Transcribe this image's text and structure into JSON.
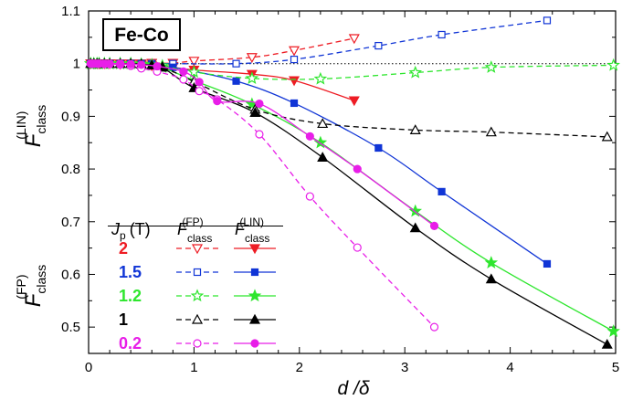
{
  "chart_data": {
    "type": "line",
    "title": "Fe-Co",
    "xlabel": "d /δ",
    "ylabel_top": {
      "main": "F",
      "sub": "class",
      "sup": "(LIN)"
    },
    "ylabel_bottom": {
      "main": "F",
      "sub": "class",
      "sup": "(FP)"
    },
    "xlim": [
      0,
      5
    ],
    "ylim": [
      0.45,
      1.1
    ],
    "xticks": [
      "0",
      "1",
      "2",
      "3",
      "4",
      "5"
    ],
    "yticks": [
      "0.5",
      "0.6",
      "0.7",
      "0.8",
      "0.9",
      "1",
      "1.1"
    ],
    "grid": false,
    "reference_line_y": 1,
    "legend": {
      "placement": "left-center",
      "header_jp": "J",
      "header_jp_sub": "p",
      "header_jp_unit": "(T)",
      "header_fp_main": "F",
      "header_fp_sub": "class",
      "header_fp_sup": "(FP)",
      "header_lin_main": "F",
      "header_lin_sub": "class",
      "header_lin_sup": "(LIN)"
    },
    "series": [
      {
        "name": "2",
        "color": "#ee1c24",
        "fp": {
          "marker": "triangle-down-open",
          "x": [
            0.02,
            0.05,
            0.08,
            0.1,
            0.15,
            0.2,
            0.3,
            0.4,
            0.5,
            0.6,
            0.8,
            1.0,
            1.55,
            1.95,
            2.52
          ],
          "y": [
            1.0,
            1.0,
            1.0,
            1.0,
            1.0,
            1.0,
            1.0,
            1.0,
            1.0,
            1.001,
            1.001,
            1.005,
            1.012,
            1.025,
            1.048
          ]
        },
        "lin": {
          "marker": "triangle-down-filled",
          "x": [
            0.02,
            0.05,
            0.08,
            0.1,
            0.15,
            0.2,
            0.3,
            0.4,
            0.5,
            0.6,
            0.8,
            1.0,
            1.55,
            1.95,
            2.52
          ],
          "y": [
            1.0,
            1.0,
            1.0,
            1.0,
            1.0,
            1.0,
            0.999,
            0.999,
            0.998,
            0.996,
            0.993,
            0.988,
            0.98,
            0.968,
            0.93
          ]
        }
      },
      {
        "name": "1.5",
        "color": "#1035d6",
        "fp": {
          "marker": "square-open",
          "x": [
            0.02,
            0.05,
            0.08,
            0.1,
            0.15,
            0.2,
            0.3,
            0.4,
            0.5,
            0.6,
            0.8,
            1.4,
            1.95,
            2.75,
            3.35,
            4.35
          ],
          "y": [
            1.0,
            1.0,
            1.0,
            1.0,
            1.0,
            1.0,
            1.0,
            1.0,
            1.0,
            1.0,
            1.0,
            1.0,
            1.008,
            1.034,
            1.055,
            1.082
          ]
        },
        "lin": {
          "marker": "square-filled",
          "x": [
            0.02,
            0.05,
            0.08,
            0.1,
            0.15,
            0.2,
            0.3,
            0.4,
            0.5,
            0.6,
            0.8,
            1.4,
            1.95,
            2.75,
            3.35,
            4.35
          ],
          "y": [
            1.0,
            1.0,
            1.0,
            1.0,
            1.0,
            1.0,
            1.0,
            1.0,
            0.999,
            0.998,
            0.993,
            0.967,
            0.925,
            0.84,
            0.757,
            0.62
          ]
        }
      },
      {
        "name": "1.2",
        "color": "#2ee62e",
        "fp": {
          "marker": "star-open",
          "x": [
            0.02,
            0.05,
            0.08,
            0.1,
            0.15,
            0.2,
            0.3,
            0.4,
            0.5,
            0.6,
            0.7,
            1.0,
            1.55,
            2.2,
            3.1,
            3.82,
            4.98
          ],
          "y": [
            1.0,
            1.0,
            1.0,
            1.0,
            1.0,
            1.0,
            1.0,
            1.0,
            0.999,
            0.998,
            0.996,
            0.984,
            0.972,
            0.971,
            0.983,
            0.993,
            0.997
          ]
        },
        "lin": {
          "marker": "star-filled",
          "x": [
            0.02,
            0.05,
            0.08,
            0.1,
            0.15,
            0.2,
            0.3,
            0.4,
            0.5,
            0.6,
            0.7,
            1.0,
            1.55,
            2.2,
            3.1,
            3.82,
            4.98
          ],
          "y": [
            1.0,
            1.0,
            1.0,
            1.0,
            1.0,
            1.0,
            1.0,
            1.0,
            0.999,
            0.997,
            0.993,
            0.968,
            0.923,
            0.85,
            0.72,
            0.622,
            0.492
          ]
        }
      },
      {
        "name": "1",
        "color": "#000000",
        "fp": {
          "marker": "triangle-up-open",
          "x": [
            0.02,
            0.05,
            0.08,
            0.1,
            0.15,
            0.2,
            0.3,
            0.4,
            0.5,
            0.6,
            0.7,
            1.0,
            1.58,
            2.22,
            3.1,
            3.82,
            4.92
          ],
          "y": [
            1.0,
            1.0,
            1.0,
            1.0,
            1.0,
            1.0,
            1.0,
            1.0,
            0.999,
            0.997,
            0.994,
            0.966,
            0.913,
            0.886,
            0.874,
            0.87,
            0.861
          ]
        },
        "lin": {
          "marker": "triangle-up-filled",
          "x": [
            0.02,
            0.05,
            0.08,
            0.1,
            0.15,
            0.2,
            0.3,
            0.4,
            0.5,
            0.6,
            0.7,
            1.0,
            1.58,
            2.22,
            3.1,
            3.82,
            4.92
          ],
          "y": [
            1.0,
            1.0,
            1.0,
            1.0,
            1.0,
            1.0,
            1.0,
            1.0,
            0.999,
            0.997,
            0.993,
            0.954,
            0.907,
            0.822,
            0.688,
            0.591,
            0.467
          ]
        }
      },
      {
        "name": "0.2",
        "color": "#e81ee8",
        "fp": {
          "marker": "circle-open",
          "x": [
            0.02,
            0.05,
            0.08,
            0.1,
            0.15,
            0.2,
            0.3,
            0.4,
            0.5,
            0.65,
            0.9,
            1.05,
            1.22,
            1.62,
            2.1,
            2.55,
            3.28
          ],
          "y": [
            1.0,
            1.0,
            1.0,
            1.0,
            0.999,
            0.999,
            0.998,
            0.996,
            0.991,
            0.985,
            0.97,
            0.948,
            0.932,
            0.866,
            0.748,
            0.651,
            0.5
          ]
        },
        "lin": {
          "marker": "circle-filled",
          "x": [
            0.02,
            0.05,
            0.08,
            0.1,
            0.15,
            0.2,
            0.3,
            0.4,
            0.5,
            0.65,
            0.9,
            1.05,
            1.22,
            1.62,
            2.1,
            2.55,
            3.28
          ],
          "y": [
            1.0,
            1.0,
            1.0,
            1.0,
            1.0,
            1.0,
            1.0,
            0.999,
            0.998,
            0.995,
            0.985,
            0.965,
            0.929,
            0.924,
            0.862,
            0.8,
            0.692
          ]
        }
      }
    ]
  }
}
